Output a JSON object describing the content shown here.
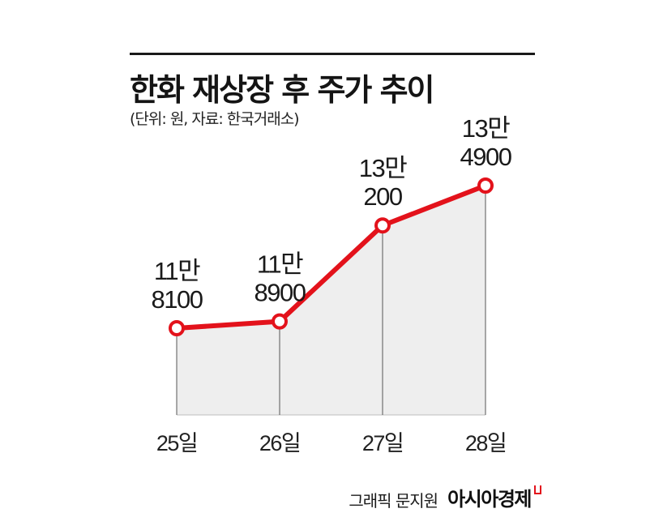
{
  "header": {
    "title": "한화 재상장 후 주가 추이",
    "subtitle": "(단위: 원, 자료: 한국거래소)"
  },
  "footer": {
    "credit": "그래픽 문지원",
    "brand": "아시아경제"
  },
  "colors": {
    "line": "#e3121b",
    "area": "#eeeeee",
    "guide": "#555555",
    "text": "#1a1a1a"
  },
  "chart_data": {
    "type": "line",
    "categories": [
      "25일",
      "26일",
      "27일",
      "28일"
    ],
    "values": [
      118100,
      118900,
      130200,
      134900
    ],
    "point_labels": [
      [
        "11만",
        "8100"
      ],
      [
        "11만",
        "8900"
      ],
      [
        "13만",
        "200"
      ],
      [
        "13만",
        "4900"
      ]
    ],
    "title": "한화 재상장 후 주가 추이",
    "subtitle": "(단위: 원, 자료: 한국거래소)",
    "xlabel": "",
    "ylabel": "",
    "grid": false,
    "markers": "hollow-circle"
  }
}
